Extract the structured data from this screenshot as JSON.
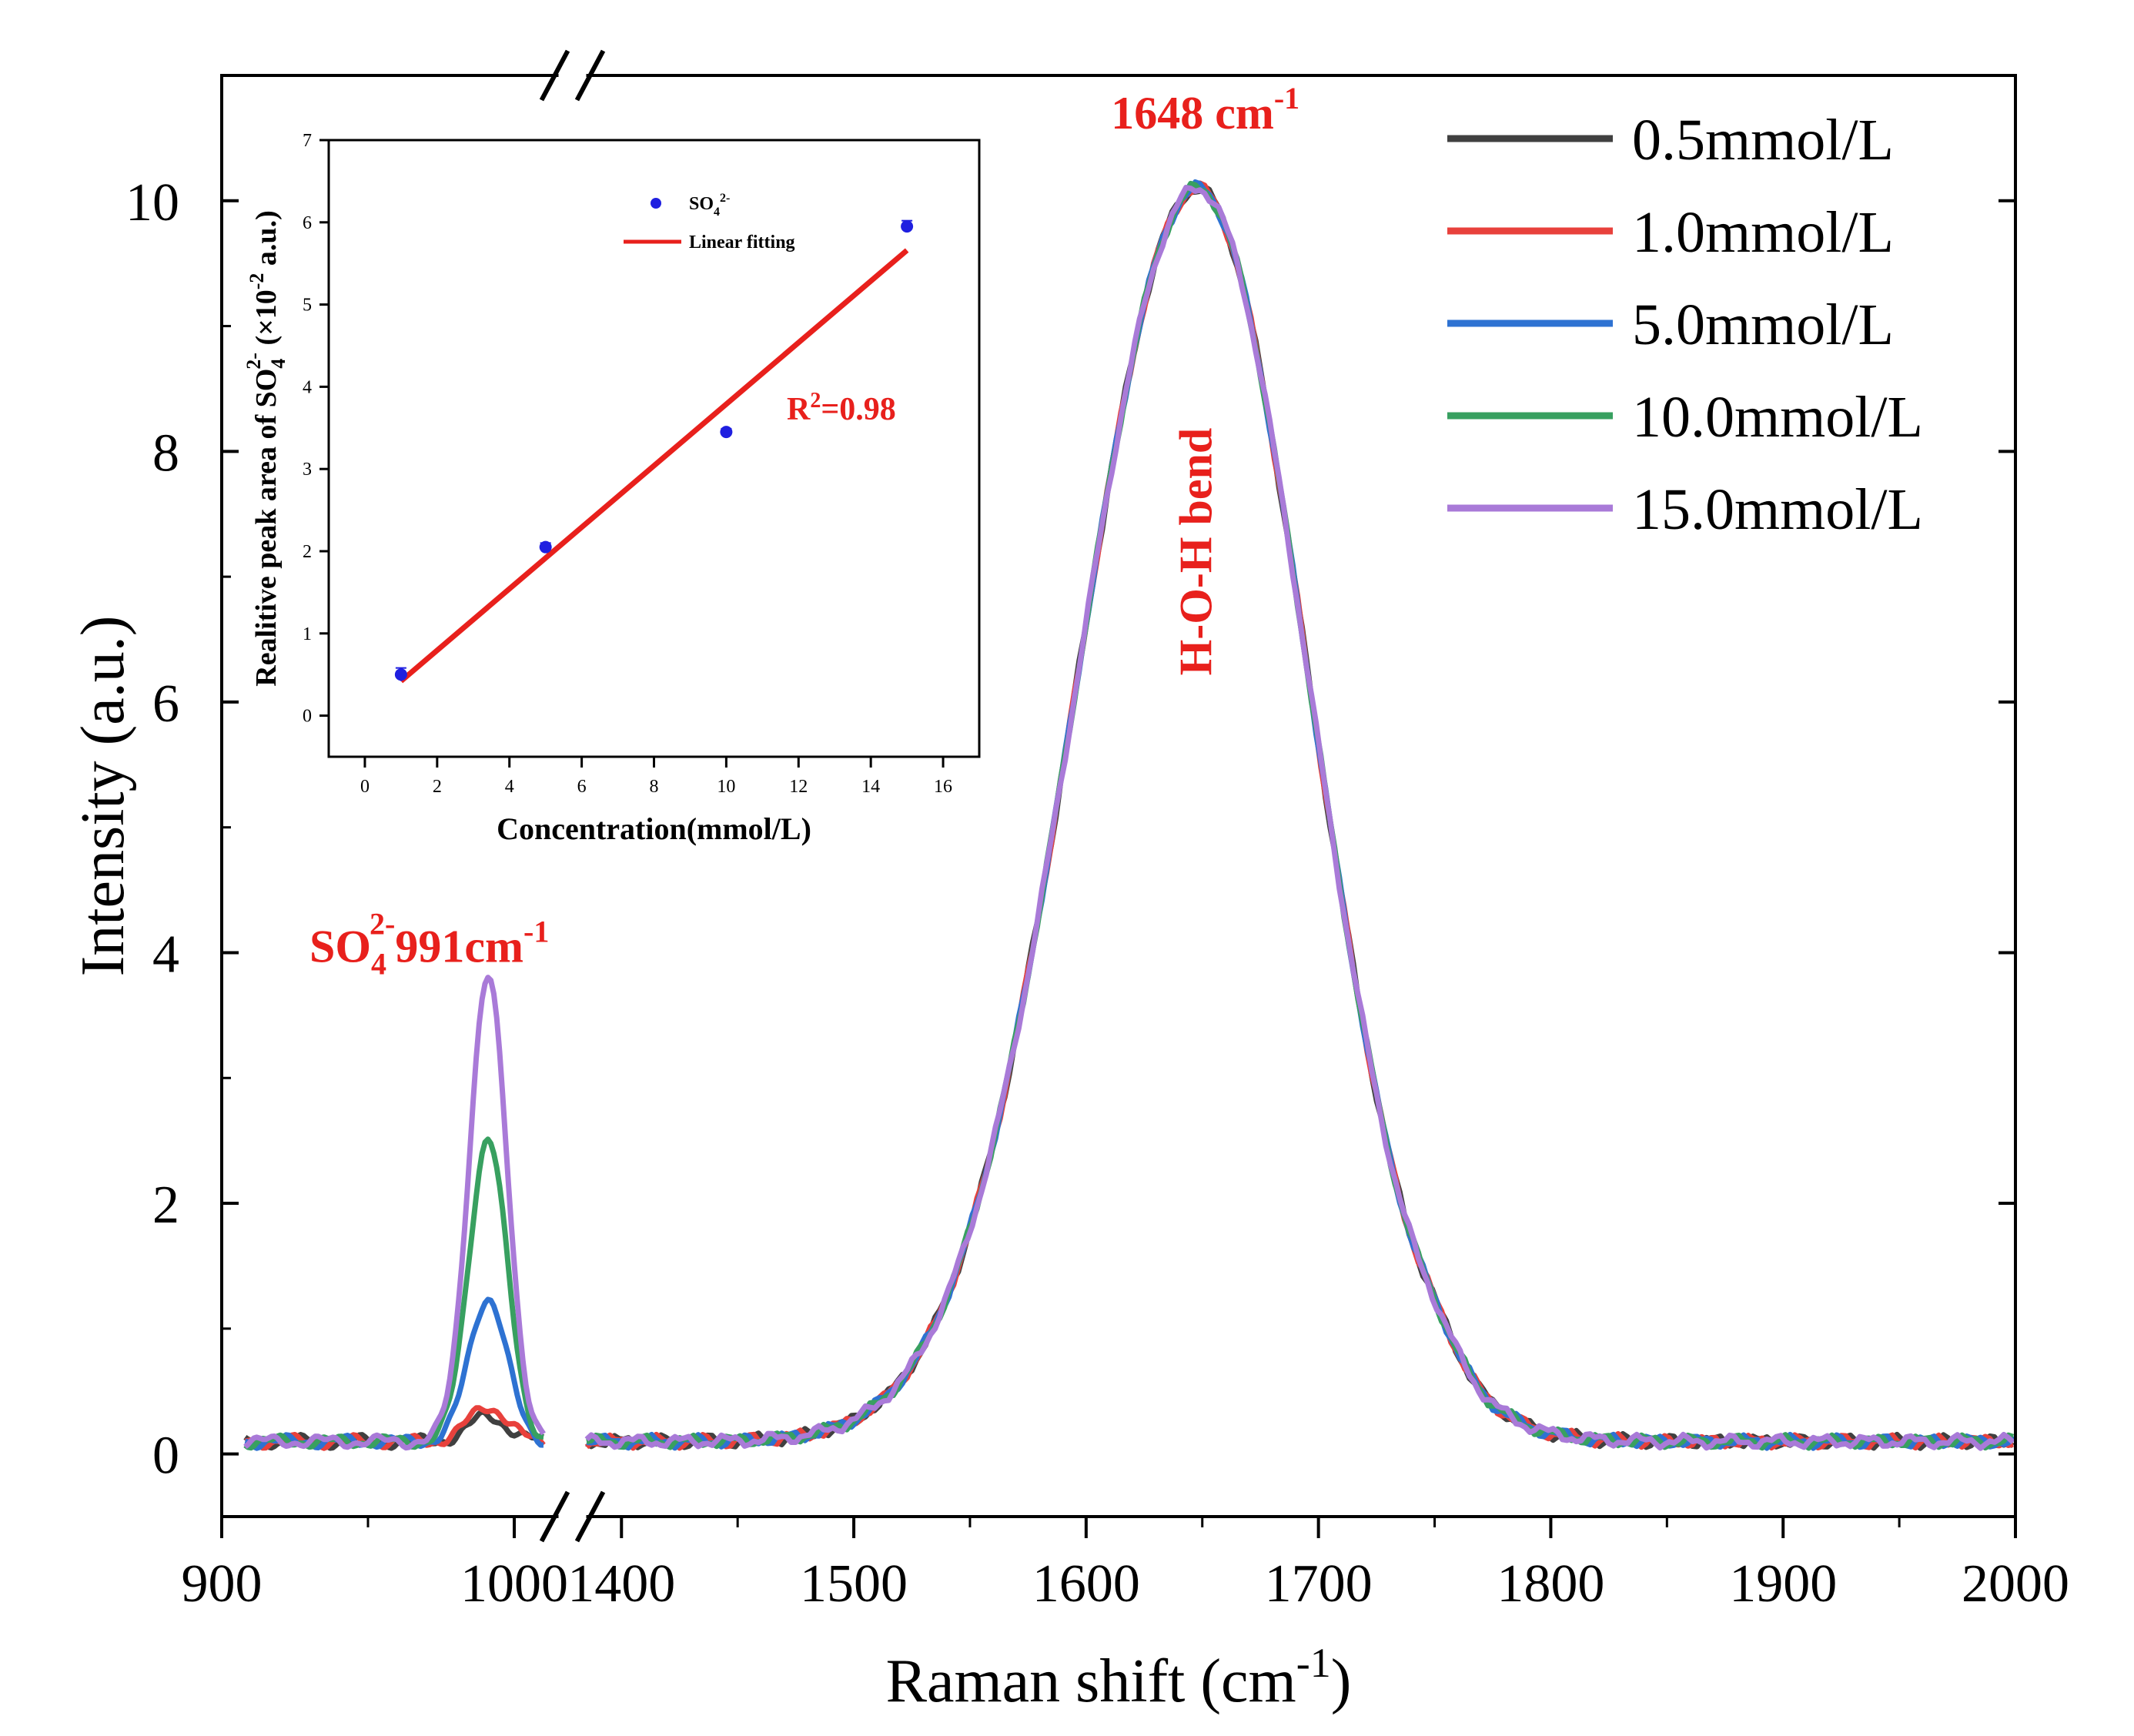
{
  "chart_data": [
    {
      "type": "line",
      "xlabel": "Raman shift (cm",
      "xlabel_sup": "-1",
      "xlabel_close": ")",
      "ylabel": "Intensity (a.u.)",
      "axis_break": true,
      "x_segments": [
        {
          "xlim": [
            900,
            1015
          ],
          "ticks": [
            "900",
            "1000"
          ],
          "tick_values": [
            900,
            1000
          ]
        },
        {
          "xlim": [
            1385,
            2000
          ],
          "ticks": [
            "1400",
            "1500",
            "1600",
            "1700",
            "1800",
            "1900",
            "2000"
          ],
          "tick_values": [
            1400,
            1500,
            1600,
            1700,
            1800,
            1900,
            2000
          ]
        }
      ],
      "ylim": [
        -0.5,
        11
      ],
      "yticks": [
        "0",
        "2",
        "4",
        "6",
        "8",
        "10"
      ],
      "ytick_values": [
        0,
        2,
        4,
        6,
        8,
        10
      ],
      "legend_position": "top-right",
      "series": [
        {
          "name": "0.5mmol/L",
          "color": "#404040",
          "sulfate_peak_height": 0.2
        },
        {
          "name": "1.0mmol/L",
          "color": "#e8413c",
          "sulfate_peak_height": 0.28
        },
        {
          "name": "5.0mmol/L",
          "color": "#2e72d2",
          "sulfate_peak_height": 1.15
        },
        {
          "name": "10.0mmol/L",
          "color": "#38a060",
          "sulfate_peak_height": 2.42
        },
        {
          "name": "15.0mmol/L",
          "color": "#a97ad8",
          "sulfate_peak_height": 3.7
        }
      ],
      "peaks": {
        "sulfate_center": 991,
        "sulfate_width_sigma": 6.5,
        "water_center": 1648,
        "water_height": 10.0,
        "water_sigma_left": 52,
        "water_sigma_right": 48,
        "baseline": 0.1
      },
      "annotations": {
        "water_peak": {
          "main": "1648 cm",
          "sup": "-1"
        },
        "water_band": "H-O-H bend",
        "sulfate": {
          "main": "SO",
          "sub": "4",
          "sup": "2-",
          "rest": "991cm",
          "rest_sup": "-1"
        },
        "color": "#e8201c"
      }
    },
    {
      "type": "scatter",
      "role": "inset",
      "xlabel": "Concentration(mmol/L)",
      "ylabel": "Realitive peak area of SO",
      "ylabel_sub": "4",
      "ylabel_sup": "2-",
      "ylabel_rest": " (×10",
      "ylabel_rest_sup": "-2",
      "ylabel_end": " a.u.)",
      "xlim": [
        -1,
        17
      ],
      "ylim": [
        -0.5,
        7
      ],
      "xticks": [
        "0",
        "2",
        "4",
        "6",
        "8",
        "10",
        "12",
        "14",
        "16"
      ],
      "xtick_values": [
        0,
        2,
        4,
        6,
        8,
        10,
        12,
        14,
        16
      ],
      "yticks": [
        "0",
        "1",
        "2",
        "3",
        "4",
        "5",
        "6",
        "7"
      ],
      "ytick_values": [
        0,
        1,
        2,
        3,
        4,
        5,
        6,
        7
      ],
      "points": {
        "name_main": "SO",
        "name_sub": "4",
        "name_sup": "2-",
        "color": "#1f1fe0",
        "x": [
          1,
          5,
          10,
          15
        ],
        "y": [
          0.5,
          2.05,
          3.45,
          5.95
        ],
        "error": [
          0.08,
          0.05,
          0.04,
          0.07
        ]
      },
      "fit": {
        "name": "Linear fitting",
        "color": "#e8201c",
        "x": [
          1,
          15
        ],
        "y": [
          0.42,
          5.66
        ]
      },
      "r_squared": {
        "main": "R",
        "sup": "2",
        "rest": "=0.98"
      }
    }
  ]
}
